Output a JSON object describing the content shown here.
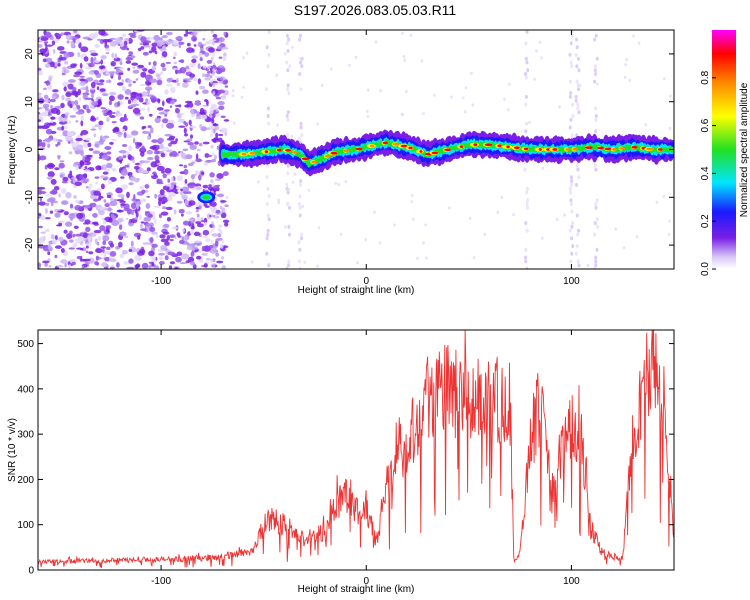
{
  "title": "S197.2026.083.05.03.R11",
  "chart_data": [
    {
      "type": "heatmap",
      "name": "spectrogram",
      "xlabel": "Height of straight line (km)",
      "ylabel": "Frequency (Hz)",
      "xlim": [
        -160,
        150
      ],
      "ylim": [
        -25,
        25
      ],
      "xticks": [
        -100,
        0,
        100
      ],
      "yticks": [
        -20,
        -10,
        0,
        10,
        20
      ],
      "colorbar": {
        "label": "Normalized spectral amplitude",
        "range": [
          0,
          1
        ],
        "ticks": [
          0.0,
          0.2,
          0.4,
          0.6,
          0.8
        ],
        "tick_labels": [
          "0.0",
          "0.2",
          "0.4",
          "0.6",
          "0.8"
        ]
      },
      "trace": {
        "description": "signal band near 0 Hz",
        "x": [
          -70,
          -60,
          -50,
          -40,
          -32,
          -28,
          -22,
          -15,
          -5,
          5,
          10,
          20,
          30,
          40,
          50,
          60,
          70,
          80,
          90,
          100,
          110,
          120,
          130,
          140,
          150
        ],
        "y": [
          -1,
          -1,
          -0.5,
          0,
          -1,
          -3,
          -2,
          -0.5,
          0,
          1,
          1.5,
          0.5,
          -1,
          0,
          1,
          1,
          0.5,
          0,
          0,
          0,
          0.5,
          0,
          0.5,
          0,
          0
        ]
      },
      "isolated_blob": {
        "x": -78,
        "y": -10
      }
    },
    {
      "type": "line",
      "name": "snr",
      "xlabel": "Height of straight line (km)",
      "ylabel": "SNR (10 * v/v)",
      "xlim": [
        -160,
        150
      ],
      "ylim": [
        0,
        530
      ],
      "xticks": [
        -100,
        0,
        100
      ],
      "yticks": [
        0,
        100,
        200,
        300,
        400,
        500
      ],
      "color": "#ee3333",
      "envelope": {
        "x": [
          -160,
          -120,
          -90,
          -70,
          -55,
          -50,
          -45,
          -40,
          -30,
          -20,
          -15,
          -10,
          -5,
          0,
          5,
          10,
          12,
          15,
          20,
          25,
          30,
          40,
          50,
          60,
          70,
          72,
          75,
          80,
          85,
          90,
          95,
          100,
          105,
          110,
          115,
          120,
          125,
          130,
          135,
          140,
          145,
          150
        ],
        "y": [
          20,
          22,
          25,
          30,
          45,
          100,
          120,
          90,
          70,
          90,
          150,
          180,
          130,
          140,
          60,
          210,
          220,
          250,
          300,
          340,
          400,
          410,
          380,
          390,
          380,
          20,
          40,
          300,
          380,
          160,
          270,
          320,
          300,
          90,
          40,
          30,
          30,
          300,
          420,
          470,
          390,
          70
        ]
      }
    }
  ]
}
